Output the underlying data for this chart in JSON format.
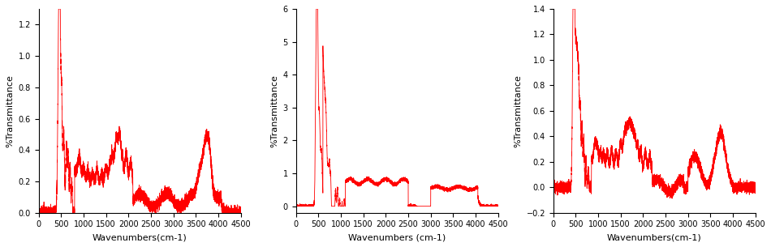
{
  "line_color": "#FF0000",
  "line_width": 0.6,
  "bg_color": "#FFFFFF",
  "xlabel1": "Wavenumbers(cm-1)",
  "xlabel2": "Wavenumbers (cm-1)",
  "xlabel3": "Wavenumbers(cm-1)",
  "ylabel": "%Transmittance",
  "xlim": [
    0,
    4500
  ],
  "xticks": [
    0,
    500,
    1000,
    1500,
    2000,
    2500,
    3000,
    3500,
    4000,
    4500
  ],
  "plot1_ylim": [
    0.0,
    1.3
  ],
  "plot1_yticks": [
    0.0,
    0.2,
    0.4,
    0.6,
    0.8,
    1.0,
    1.2
  ],
  "plot2_ylim": [
    -0.2,
    6.0
  ],
  "plot2_yticks": [
    0,
    1,
    2,
    3,
    4,
    5,
    6
  ],
  "plot3_ylim": [
    -0.2,
    1.4
  ],
  "plot3_yticks": [
    -0.2,
    0.0,
    0.2,
    0.4,
    0.6,
    0.8,
    1.0,
    1.2,
    1.4
  ],
  "xlabel_fontsize": 8,
  "ylabel_fontsize": 8,
  "tick_labelsize": 7
}
